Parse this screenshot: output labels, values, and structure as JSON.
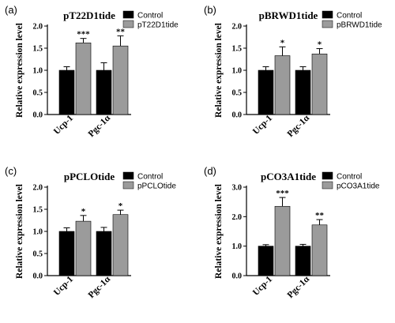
{
  "chart_data": [
    {
      "type": "bar",
      "panel_label": "(a)",
      "title": "pT22D1tide",
      "ylabel": "Relative expression level",
      "xlabel": "",
      "categories": [
        "Ucp-1",
        "Pgc-1α"
      ],
      "ylim": [
        0,
        2.0
      ],
      "yticks": [
        "0.0",
        "0.5",
        "1.0",
        "1.5",
        "2.0"
      ],
      "ytick_values": [
        0,
        0.5,
        1.0,
        1.5,
        2.0
      ],
      "series": [
        {
          "name": "Control",
          "values": [
            1.0,
            1.0
          ],
          "errors": [
            0.08,
            0.17
          ],
          "color": "#000000"
        },
        {
          "name": "pT22D1tide",
          "values": [
            1.62,
            1.55
          ],
          "errors": [
            0.1,
            0.23
          ],
          "color": "#9b9b9b"
        }
      ],
      "significance": [
        "***",
        "**"
      ],
      "legend_position": "top-right",
      "grid": false
    },
    {
      "type": "bar",
      "panel_label": "(b)",
      "title": "pBRWD1tide",
      "ylabel": "Relative expression level",
      "xlabel": "",
      "categories": [
        "Ucp-1",
        "Pgc-1α"
      ],
      "ylim": [
        0,
        2.0
      ],
      "yticks": [
        "0.0",
        "0.5",
        "1.0",
        "1.5",
        "2.0"
      ],
      "ytick_values": [
        0,
        0.5,
        1.0,
        1.5,
        2.0
      ],
      "series": [
        {
          "name": "Control",
          "values": [
            1.0,
            1.0
          ],
          "errors": [
            0.08,
            0.08
          ],
          "color": "#000000"
        },
        {
          "name": "pBRWD1tide",
          "values": [
            1.33,
            1.37
          ],
          "errors": [
            0.2,
            0.12
          ],
          "color": "#9b9b9b"
        }
      ],
      "significance": [
        "*",
        "*"
      ],
      "legend_position": "top-right",
      "grid": false
    },
    {
      "type": "bar",
      "panel_label": "(c)",
      "title": "pPCLOtide",
      "ylabel": "Relative expression level",
      "xlabel": "",
      "categories": [
        "Ucp-1",
        "Pgc-1α"
      ],
      "ylim": [
        0,
        2.0
      ],
      "yticks": [
        "0.0",
        "0.5",
        "1.0",
        "1.5",
        "2.0"
      ],
      "ytick_values": [
        0,
        0.5,
        1.0,
        1.5,
        2.0
      ],
      "series": [
        {
          "name": "Control",
          "values": [
            1.0,
            1.0
          ],
          "errors": [
            0.08,
            0.09
          ],
          "color": "#000000"
        },
        {
          "name": "pPCLOtide",
          "values": [
            1.23,
            1.38
          ],
          "errors": [
            0.13,
            0.1
          ],
          "color": "#9b9b9b"
        }
      ],
      "significance": [
        "*",
        "*"
      ],
      "legend_position": "top-right",
      "grid": false
    },
    {
      "type": "bar",
      "panel_label": "(d)",
      "title": "pCO3A1tide",
      "ylabel": "Relative expression level",
      "xlabel": "",
      "categories": [
        "Ucp-1",
        "Pgc-1α"
      ],
      "ylim": [
        0,
        3.0
      ],
      "yticks": [
        "0.0",
        "1.0",
        "2.0",
        "3.0"
      ],
      "ytick_values": [
        0,
        1.0,
        2.0,
        3.0
      ],
      "series": [
        {
          "name": "Control",
          "values": [
            1.0,
            1.0
          ],
          "errors": [
            0.05,
            0.06
          ],
          "color": "#000000"
        },
        {
          "name": "pCO3A1tide",
          "values": [
            2.35,
            1.72
          ],
          "errors": [
            0.3,
            0.18
          ],
          "color": "#9b9b9b"
        }
      ],
      "significance": [
        "***",
        "**"
      ],
      "legend_position": "top-right",
      "grid": false
    }
  ]
}
